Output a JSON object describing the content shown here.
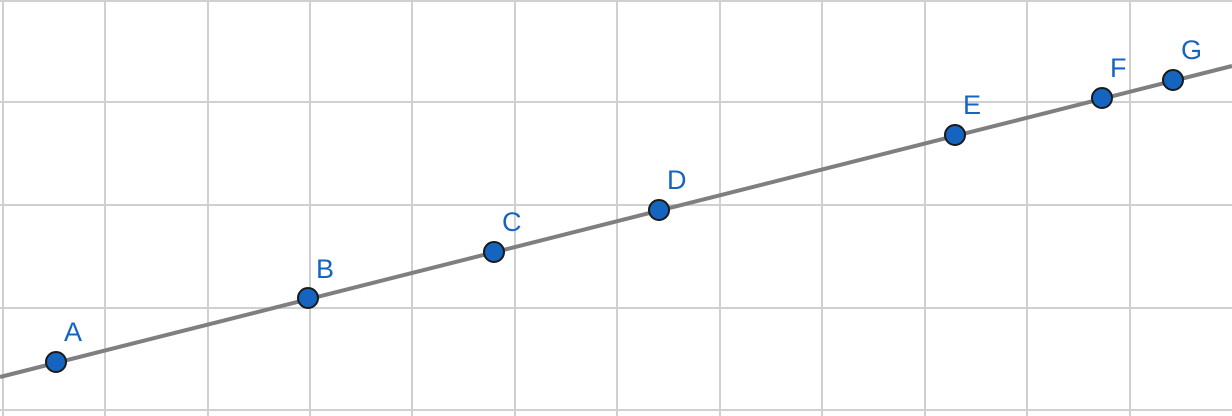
{
  "colors": {
    "background": "#ffffff",
    "grid": "#d0d0d0",
    "line": "#7f7f7f",
    "point_fill": "#1565c0",
    "point_stroke": "#1a1a1a",
    "label": "#1565c0"
  },
  "points": [
    {
      "label": "A"
    },
    {
      "label": "B"
    },
    {
      "label": "C"
    },
    {
      "label": "D"
    },
    {
      "label": "E"
    },
    {
      "label": "F"
    },
    {
      "label": "G"
    }
  ]
}
